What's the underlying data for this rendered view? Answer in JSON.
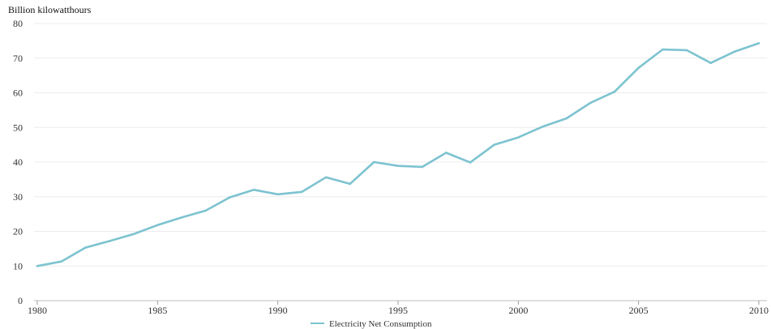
{
  "chart_data": {
    "type": "line",
    "ylabel": "Billion kilowatthours",
    "xlabel": "",
    "xlim": [
      1980,
      2010
    ],
    "ylim": [
      0,
      80
    ],
    "x_ticks": [
      1980,
      1985,
      1990,
      1995,
      2000,
      2005,
      2010
    ],
    "y_ticks": [
      0,
      10,
      20,
      30,
      40,
      50,
      60,
      70,
      80
    ],
    "grid": true,
    "legend_position": "bottom-center",
    "series": [
      {
        "name": "Electricity Net Consumption",
        "color": "#7dc3d0",
        "x": [
          1980,
          1981,
          1982,
          1983,
          1984,
          1985,
          1986,
          1987,
          1988,
          1989,
          1990,
          1991,
          1992,
          1993,
          1994,
          1995,
          1996,
          1997,
          1998,
          1999,
          2000,
          2001,
          2002,
          2003,
          2004,
          2005,
          2006,
          2007,
          2008,
          2009,
          2010
        ],
        "values": [
          10,
          11.3,
          15.3,
          17.2,
          19.2,
          21.8,
          24.0,
          26.0,
          29.8,
          32.0,
          30.7,
          31.4,
          35.6,
          33.7,
          40.0,
          38.9,
          38.6,
          42.7,
          39.9,
          45.0,
          47.1,
          50.2,
          52.6,
          57.1,
          60.3,
          67.2,
          72.5,
          72.3,
          68.6,
          71.9,
          74.3
        ]
      }
    ]
  }
}
